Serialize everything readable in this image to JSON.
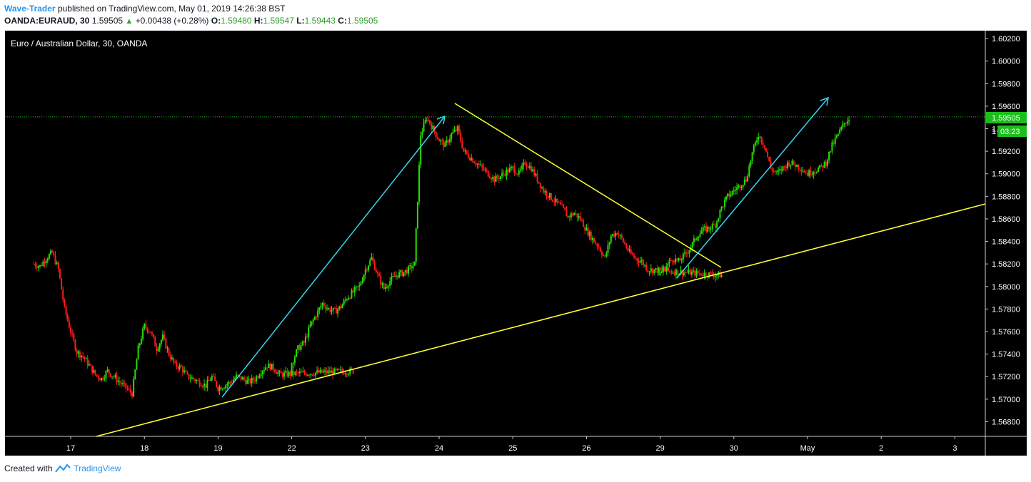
{
  "header": {
    "author": "Wave-Trader",
    "published_text": "published on TradingView.com, May 01, 2019 14:26:38 BST",
    "symbol": "OANDA:EURAUD, 30",
    "last": "1.59505",
    "change_arrow": "▲",
    "change": "+0.00438 (+0.28%)",
    "o_label": "O:",
    "o_value": "1.59480",
    "h_label": "H:",
    "h_value": "1.59547",
    "l_label": "L:",
    "l_value": "1.59443",
    "c_label": "C:",
    "c_value": "1.59505"
  },
  "chart_title": "Euro / Australian Dollar, 30, OANDA",
  "price_badge": "1.59505",
  "countdown_badge": "03:23",
  "countdown_prefix": "1",
  "footer": {
    "created_with": "Created with",
    "brand": "TradingView"
  },
  "colors": {
    "background": "#000000",
    "up_candle": "#26e000",
    "down_candle": "#ff1a1a",
    "trendline": "#ffff33",
    "arrow": "#33d6f0",
    "last_price_line": "#1bbf1b",
    "axis_text": "#ffffff",
    "brand": "#2196f3"
  },
  "chart_data": {
    "type": "line",
    "title": "Euro / Australian Dollar, 30, OANDA",
    "x_tick_labels": [
      "17",
      "18",
      "19",
      "22",
      "23",
      "24",
      "25",
      "26",
      "29",
      "30",
      "May",
      "2",
      "3"
    ],
    "y_tick_labels": [
      "1.60200",
      "1.60000",
      "1.59800",
      "1.59600",
      "1.59400",
      "1.59200",
      "1.59000",
      "1.58800",
      "1.58600",
      "1.58400",
      "1.58200",
      "1.58000",
      "1.57800",
      "1.57600",
      "1.57400",
      "1.57200",
      "1.57000",
      "1.56800"
    ],
    "ylim": [
      1.5667,
      1.6027
    ],
    "last_price": 1.59505,
    "series": [
      {
        "x": [
          "16 12:00",
          "16 14:00",
          "16 16:00",
          "16 18:00",
          "16 20:00",
          "16 22:00",
          "17 00:00",
          "17 02:00",
          "17 04:00",
          "17 06:00",
          "17 08:00",
          "17 10:00",
          "17 12:00",
          "17 14:00",
          "17 16:00",
          "17 18:00",
          "17 20:00",
          "17 22:00",
          "18 00:00",
          "18 02:00",
          "18 04:00",
          "18 06:00",
          "18 08:00",
          "18 10:00",
          "18 12:00",
          "18 14:00",
          "18 16:00",
          "18 18:00",
          "18 20:00",
          "18 22:00",
          "19 00:00",
          "19 02:00",
          "19 04:00",
          "19 06:00",
          "19 08:00",
          "19 10:00",
          "19 12:00",
          "19 14:00",
          "19 16:00",
          "19 18:00",
          "19 20:00",
          "21 22:00",
          "22 00:00",
          "22 02:00",
          "22 04:00",
          "22 06:00",
          "22 08:00",
          "22 10:00",
          "22 12:00",
          "22 14:00",
          "22 16:00",
          "22 18:00",
          "22 20:00",
          "22 22:00",
          "23 00:00",
          "23 02:00",
          "23 04:00",
          "23 06:00",
          "23 08:00",
          "23 10:00",
          "23 12:00",
          "23 14:00",
          "23 16:00",
          "23 18:00",
          "23 20:00",
          "23 22:00",
          "24 00:00",
          "24 02:00",
          "24 04:00",
          "24 06:00",
          "24 08:00",
          "24 10:00",
          "24 12:00",
          "24 14:00",
          "24 16:00",
          "24 18:00",
          "24 20:00",
          "24 22:00",
          "25 00:00",
          "25 02:00",
          "25 04:00",
          "25 06:00",
          "25 08:00",
          "25 10:00",
          "25 12:00",
          "25 14:00",
          "25 16:00",
          "25 18:00",
          "25 20:00",
          "25 22:00",
          "26 00:00",
          "26 02:00",
          "26 04:00",
          "26 06:00",
          "26 08:00",
          "26 10:00",
          "26 12:00",
          "26 14:00",
          "26 16:00",
          "26 18:00",
          "26 20:00",
          "28 22:00",
          "29 00:00",
          "29 02:00",
          "29 04:00",
          "29 06:00",
          "29 08:00",
          "29 10:00",
          "29 12:00",
          "29 14:00",
          "29 16:00",
          "29 18:00",
          "29 20:00",
          "29 22:00",
          "30 00:00",
          "30 02:00",
          "30 04:00",
          "30 06:00",
          "30 08:00",
          "30 10:00",
          "30 12:00",
          "30 14:00",
          "30 16:00",
          "30 18:00",
          "30 20:00",
          "30 22:00",
          "May 00:00",
          "May 02:00",
          "May 04:00",
          "May 06:00",
          "May 08:00",
          "May 10:00",
          "May 12:00",
          "May 14:00"
        ],
        "y": [
          1.582,
          1.5818,
          1.5825,
          1.583,
          1.5815,
          1.578,
          1.576,
          1.5742,
          1.5738,
          1.573,
          1.5722,
          1.5718,
          1.5725,
          1.572,
          1.5715,
          1.571,
          1.5705,
          1.5745,
          1.5765,
          1.576,
          1.5745,
          1.5755,
          1.574,
          1.573,
          1.5728,
          1.572,
          1.5718,
          1.5715,
          1.5712,
          1.572,
          1.571,
          1.5712,
          1.5715,
          1.572,
          1.5718,
          1.5715,
          1.5718,
          1.5725,
          1.573,
          1.5728,
          1.5722,
          1.5725,
          1.5732,
          1.5745,
          1.575,
          1.5765,
          1.5775,
          1.5785,
          1.578,
          1.5778,
          1.5782,
          1.579,
          1.5795,
          1.58,
          1.5815,
          1.5825,
          1.581,
          1.5798,
          1.5805,
          1.581,
          1.5812,
          1.5815,
          1.582,
          1.5935,
          1.595,
          1.594,
          1.593,
          1.5925,
          1.5935,
          1.594,
          1.592,
          1.5915,
          1.591,
          1.5905,
          1.59,
          1.5895,
          1.5898,
          1.5902,
          1.5905,
          1.59,
          1.591,
          1.5905,
          1.5895,
          1.5885,
          1.588,
          1.5875,
          1.587,
          1.5862,
          1.5865,
          1.586,
          1.585,
          1.5842,
          1.5835,
          1.5825,
          1.5845,
          1.5848,
          1.584,
          1.583,
          1.5825,
          1.5822,
          1.5815,
          1.581,
          1.5812,
          1.5818,
          1.5825,
          1.5822,
          1.5828,
          1.5835,
          1.5845,
          1.585,
          1.5852,
          1.5855,
          1.587,
          1.588,
          1.5885,
          1.589,
          1.5895,
          1.5918,
          1.5935,
          1.5925,
          1.5905,
          1.59,
          1.5905,
          1.591,
          1.5908,
          1.5905,
          1.59,
          1.5903,
          1.5905,
          1.591,
          1.5925,
          1.5935,
          1.5945,
          1.59505
        ]
      }
    ]
  }
}
